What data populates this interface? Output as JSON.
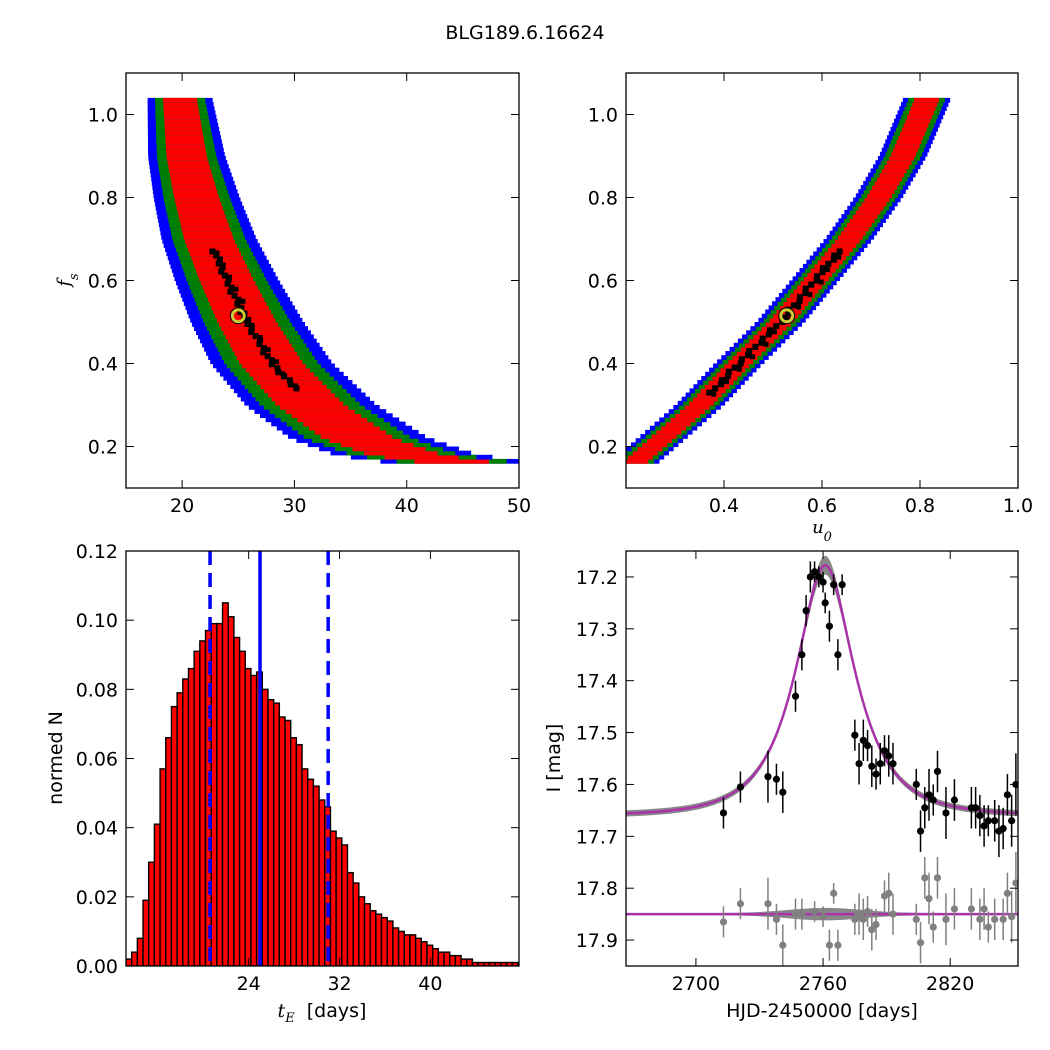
{
  "figure": {
    "title": "BLG189.6.16624"
  },
  "chart_data": [
    {
      "type": "heatmap",
      "panel": "top-left",
      "xlabel": "",
      "ylabel": "f_s",
      "xlim": [
        15,
        50
      ],
      "ylim": [
        0.1,
        1.1
      ],
      "xticks": [
        "20",
        "30",
        "40",
        "50"
      ],
      "yticks": [
        "0.2",
        "0.4",
        "0.6",
        "0.8",
        "1.0"
      ],
      "colors": {
        "outer": "#0000ff",
        "middle": "#008000",
        "inner": "#ff0000",
        "core": "#000000",
        "best_marker": "#cccc33"
      },
      "best_fit": {
        "x": 25.0,
        "y": 0.515
      },
      "ridge": {
        "x_at_fs": [
          [
            1.04,
            19.8
          ],
          [
            0.9,
            20.4
          ],
          [
            0.8,
            21.3
          ],
          [
            0.7,
            22.4
          ],
          [
            0.6,
            24.0
          ],
          [
            0.5,
            25.8
          ],
          [
            0.4,
            28.0
          ],
          [
            0.3,
            31.5
          ],
          [
            0.22,
            35.8
          ],
          [
            0.18,
            40.0
          ],
          [
            0.165,
            44.0
          ]
        ]
      },
      "core_segment": {
        "x": [
          22.0,
          29.5
        ],
        "y": [
          0.67,
          0.34
        ]
      }
    },
    {
      "type": "heatmap",
      "panel": "top-right",
      "xlabel": "u_0",
      "ylabel": "",
      "xlim": [
        0.2,
        1.0
      ],
      "ylim": [
        0.1,
        1.1
      ],
      "xticks": [
        "0.4",
        "0.6",
        "0.8",
        "1.0"
      ],
      "yticks": [
        "0.2",
        "0.4",
        "0.6",
        "0.8",
        "1.0"
      ],
      "colors": {
        "outer": "#0000ff",
        "middle": "#008000",
        "inner": "#ff0000",
        "core": "#000000",
        "best_marker": "#cccc33"
      },
      "best_fit": {
        "x": 0.528,
        "y": 0.515
      },
      "ridge": {
        "x_at_fs": [
          [
            0.165,
            0.22
          ],
          [
            0.3,
            0.35
          ],
          [
            0.4,
            0.43
          ],
          [
            0.5,
            0.515
          ],
          [
            0.6,
            0.585
          ],
          [
            0.7,
            0.655
          ],
          [
            0.8,
            0.715
          ],
          [
            0.9,
            0.765
          ],
          [
            1.04,
            0.815
          ]
        ]
      },
      "core_segment": {
        "x": [
          0.37,
          0.6
        ],
        "y": [
          0.33,
          0.67
        ]
      }
    },
    {
      "type": "bar",
      "panel": "bottom-left",
      "xlabel": "t_E  [days]",
      "ylabel": "normed N",
      "xlim": [
        13.2,
        47.8
      ],
      "ylim": [
        0.0,
        0.12
      ],
      "xticks": [
        "24",
        "32",
        "40"
      ],
      "yticks": [
        "0.00",
        "0.02",
        "0.04",
        "0.06",
        "0.08",
        "0.10",
        "0.12"
      ],
      "bin_start": 13.2,
      "bin_width": 0.5,
      "values": [
        0.002,
        0.004,
        0.008,
        0.019,
        0.03,
        0.041,
        0.057,
        0.066,
        0.075,
        0.079,
        0.083,
        0.086,
        0.091,
        0.094,
        0.097,
        0.099,
        0.099,
        0.105,
        0.101,
        0.095,
        0.091,
        0.086,
        0.084,
        0.085,
        0.08,
        0.077,
        0.076,
        0.072,
        0.071,
        0.066,
        0.064,
        0.057,
        0.054,
        0.052,
        0.048,
        0.046,
        0.039,
        0.037,
        0.035,
        0.027,
        0.024,
        0.02,
        0.018,
        0.016,
        0.015,
        0.014,
        0.013,
        0.011,
        0.01,
        0.009,
        0.009,
        0.008,
        0.007,
        0.006,
        0.005,
        0.004,
        0.004,
        0.003,
        0.003,
        0.002,
        0.002,
        0.001,
        0.001,
        0.001,
        0.001,
        0.001,
        0.001,
        0.001,
        0.001
      ],
      "bar_color": "#ff0000",
      "vlines": [
        {
          "x": 20.6,
          "style": "dashed",
          "color": "#0000ff"
        },
        {
          "x": 25.0,
          "style": "solid",
          "color": "#0000ff"
        },
        {
          "x": 31.0,
          "style": "dashed",
          "color": "#0000ff"
        }
      ]
    },
    {
      "type": "scatter",
      "panel": "bottom-right",
      "xlabel": "HJD-2450000 [days]",
      "ylabel": "I [mag]",
      "xlim": [
        2667,
        2852
      ],
      "ylim": [
        17.95,
        17.15
      ],
      "xticks": [
        "2700",
        "2760",
        "2820"
      ],
      "yticks": [
        "17.2",
        "17.3",
        "17.4",
        "17.5",
        "17.6",
        "17.7",
        "17.8",
        "17.9"
      ],
      "model": {
        "type": "paczynski",
        "t0": 2761,
        "tE": 25.0,
        "u0": 0.528,
        "fs": 0.515,
        "baseline_mag": 17.66,
        "residual_baseline": 17.85,
        "color": "#aa33aa",
        "band_color": "#888888"
      },
      "series": [
        {
          "color": "#000000",
          "x": [
            2713,
            2721,
            2734,
            2738,
            2741,
            2747,
            2750,
            2752,
            2754,
            2756,
            2758,
            2760,
            2761,
            2763,
            2765,
            2767,
            2769,
            2775,
            2777,
            2779,
            2781,
            2783,
            2785,
            2787,
            2789,
            2791,
            2793,
            2804,
            2806,
            2808,
            2810,
            2812,
            2814,
            2818,
            2822,
            2830,
            2832,
            2834,
            2836,
            2838,
            2841,
            2843,
            2845,
            2847,
            2849,
            2851
          ],
          "y": [
            17.655,
            17.605,
            17.585,
            17.59,
            17.615,
            17.43,
            17.35,
            17.265,
            17.2,
            17.19,
            17.2,
            17.21,
            17.25,
            17.295,
            17.215,
            17.35,
            17.215,
            17.505,
            17.56,
            17.515,
            17.525,
            17.565,
            17.58,
            17.56,
            17.535,
            17.545,
            17.56,
            17.6,
            17.69,
            17.645,
            17.62,
            17.63,
            17.575,
            17.655,
            17.63,
            17.645,
            17.645,
            17.66,
            17.68,
            17.67,
            17.67,
            17.69,
            17.685,
            17.62,
            17.67,
            17.6
          ],
          "yerr": [
            0.03,
            0.03,
            0.05,
            0.03,
            0.04,
            0.03,
            0.03,
            0.03,
            0.03,
            0.02,
            0.02,
            0.02,
            0.02,
            0.03,
            0.02,
            0.03,
            0.02,
            0.03,
            0.04,
            0.04,
            0.03,
            0.04,
            0.03,
            0.04,
            0.03,
            0.04,
            0.04,
            0.03,
            0.04,
            0.04,
            0.05,
            0.03,
            0.04,
            0.05,
            0.04,
            0.04,
            0.04,
            0.04,
            0.04,
            0.03,
            0.04,
            0.05,
            0.04,
            0.04,
            0.05,
            0.06
          ]
        },
        {
          "color": "#808080",
          "x": [
            2713,
            2721,
            2734,
            2738,
            2741,
            2747,
            2750,
            2756,
            2760,
            2763,
            2765,
            2767,
            2775,
            2777,
            2779,
            2781,
            2783,
            2785,
            2789,
            2791,
            2793,
            2804,
            2806,
            2808,
            2810,
            2812,
            2814,
            2818,
            2822,
            2830,
            2834,
            2836,
            2838,
            2841,
            2845,
            2847,
            2849,
            2851
          ],
          "y": [
            17.865,
            17.83,
            17.83,
            17.86,
            17.91,
            17.85,
            17.85,
            17.845,
            17.855,
            17.91,
            17.81,
            17.91,
            17.86,
            17.85,
            17.86,
            17.845,
            17.88,
            17.87,
            17.815,
            17.81,
            17.85,
            17.86,
            17.905,
            17.78,
            17.82,
            17.875,
            17.78,
            17.86,
            17.84,
            17.84,
            17.86,
            17.84,
            17.875,
            17.86,
            17.86,
            17.81,
            17.855,
            17.79
          ],
          "yerr": [
            0.03,
            0.03,
            0.05,
            0.03,
            0.04,
            0.03,
            0.03,
            0.02,
            0.02,
            0.03,
            0.02,
            0.03,
            0.03,
            0.04,
            0.04,
            0.03,
            0.04,
            0.03,
            0.03,
            0.04,
            0.04,
            0.03,
            0.04,
            0.04,
            0.05,
            0.03,
            0.04,
            0.05,
            0.04,
            0.04,
            0.04,
            0.04,
            0.03,
            0.04,
            0.04,
            0.04,
            0.05,
            0.06
          ]
        }
      ]
    }
  ]
}
